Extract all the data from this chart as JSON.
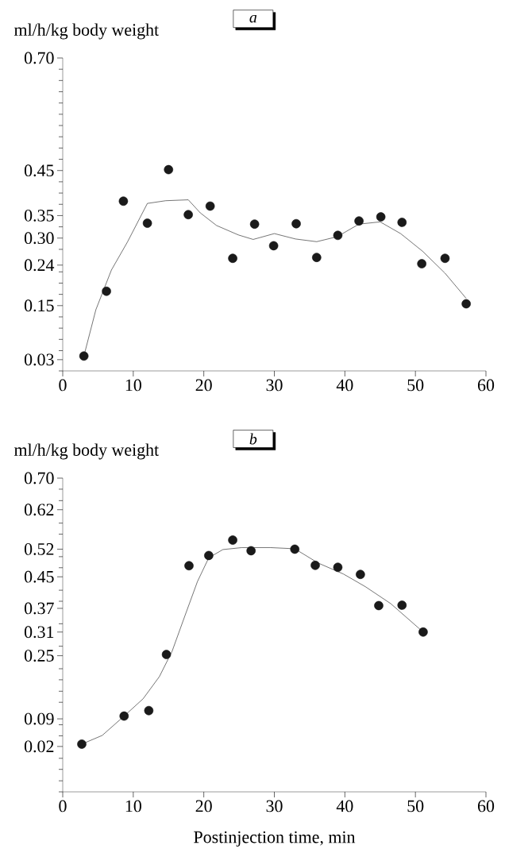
{
  "chart_data": [
    {
      "type": "scatter",
      "title": "a",
      "ylabel": "ml/h/kg body weight",
      "xlim": [
        0,
        60
      ],
      "xticks": [
        0,
        10,
        20,
        30,
        40,
        50,
        60
      ],
      "ylim": [
        0.005,
        0.7
      ],
      "yticks": [
        {
          "value": 0.7,
          "label": "0.70"
        },
        0.45,
        0.35,
        {
          "value": 0.3,
          "label": "0.30"
        },
        0.24,
        0.15,
        0.03,
        {
          "value": 0.675,
          "label": null
        },
        {
          "value": 0.65,
          "label": null
        },
        {
          "value": 0.625,
          "label": null
        },
        {
          "value": 0.6,
          "label": null
        },
        {
          "value": 0.575,
          "label": null
        },
        {
          "value": 0.55,
          "label": null
        },
        {
          "value": 0.525,
          "label": null
        },
        {
          "value": 0.5,
          "label": null
        },
        {
          "value": 0.475,
          "label": null
        },
        {
          "value": 0.425,
          "label": null
        },
        {
          "value": 0.4,
          "label": null
        },
        {
          "value": 0.375,
          "label": null
        },
        {
          "value": 0.325,
          "label": null
        },
        {
          "value": 0.275,
          "label": null
        },
        {
          "value": 0.225,
          "label": null
        },
        {
          "value": 0.2,
          "label": null
        },
        {
          "value": 0.175,
          "label": null
        },
        {
          "value": 0.125,
          "label": null
        },
        {
          "value": 0.1,
          "label": null
        },
        {
          "value": 0.075,
          "label": null
        },
        {
          "value": 0.05,
          "label": null
        },
        {
          "value": 0.005,
          "label": null
        }
      ],
      "series": [
        {
          "type": "scatter",
          "marker": "circle",
          "color": "#1a1a1a",
          "x": [
            3.0,
            6.2,
            8.6,
            12.0,
            15.0,
            17.8,
            20.9,
            24.1,
            27.2,
            29.9,
            33.1,
            36.0,
            39.0,
            42.0,
            45.1,
            48.1,
            50.9,
            54.2,
            57.2
          ],
          "values": [
            0.038,
            0.182,
            0.382,
            0.333,
            0.452,
            0.352,
            0.371,
            0.255,
            0.331,
            0.283,
            0.332,
            0.257,
            0.306,
            0.338,
            0.347,
            0.335,
            0.243,
            0.255,
            0.154
          ]
        },
        {
          "type": "line",
          "marker": "none",
          "line_style": "solid",
          "color": "#1a1a1a",
          "x": [
            3.0,
            4.7,
            6.9,
            9.2,
            12.0,
            14.6,
            17.8,
            19.5,
            21.8,
            24.9,
            27.0,
            30.0,
            33.0,
            36.0,
            38.9,
            42.0,
            45.0,
            47.9,
            51.0,
            54.2,
            57.2
          ],
          "values": [
            0.038,
            0.141,
            0.229,
            0.292,
            0.377,
            0.383,
            0.385,
            0.356,
            0.328,
            0.307,
            0.297,
            0.31,
            0.298,
            0.292,
            0.303,
            0.331,
            0.336,
            0.31,
            0.271,
            0.222,
            0.166
          ]
        }
      ]
    },
    {
      "type": "scatter",
      "title": "b",
      "ylabel": "ml/h/kg body weight",
      "xlabel": "Postinjection time, min",
      "xlim": [
        0,
        60
      ],
      "xticks": [
        0,
        10,
        20,
        30,
        40,
        50,
        60
      ],
      "ylim": [
        -0.095,
        0.7
      ],
      "yticks": [
        {
          "value": 0.7,
          "label": "0.70"
        },
        0.62,
        0.52,
        0.45,
        0.37,
        0.31,
        0.25,
        0.09,
        0.02,
        {
          "value": 0.672,
          "label": null
        },
        {
          "value": 0.643,
          "label": null
        },
        {
          "value": 0.586,
          "label": null
        },
        {
          "value": 0.558,
          "label": null
        },
        {
          "value": 0.501,
          "label": null
        },
        {
          "value": 0.473,
          "label": null
        },
        {
          "value": 0.416,
          "label": null
        },
        {
          "value": 0.388,
          "label": null
        },
        {
          "value": 0.331,
          "label": null
        },
        {
          "value": 0.274,
          "label": null
        },
        {
          "value": 0.217,
          "label": null
        },
        {
          "value": 0.189,
          "label": null
        },
        {
          "value": 0.16,
          "label": null
        },
        {
          "value": 0.132,
          "label": null
        },
        {
          "value": 0.075,
          "label": null
        },
        {
          "value": 0.047,
          "label": null
        },
        {
          "value": -0.01,
          "label": null
        },
        {
          "value": -0.038,
          "label": null
        },
        {
          "value": -0.067,
          "label": null
        },
        {
          "value": -0.095,
          "label": null
        }
      ],
      "series": [
        {
          "type": "scatter",
          "marker": "circle",
          "color": "#1a1a1a",
          "x": [
            2.7,
            8.7,
            12.2,
            14.7,
            17.9,
            20.7,
            24.1,
            26.7,
            32.9,
            35.8,
            39.0,
            42.2,
            44.8,
            48.1,
            51.1
          ],
          "values": [
            0.026,
            0.097,
            0.111,
            0.253,
            0.478,
            0.504,
            0.543,
            0.516,
            0.52,
            0.479,
            0.474,
            0.456,
            0.377,
            0.378,
            0.31
          ]
        },
        {
          "type": "line",
          "marker": "none",
          "line_style": "solid",
          "color": "#1a1a1a",
          "x": [
            2.7,
            5.6,
            8.7,
            11.4,
            13.7,
            15.5,
            17.3,
            19.1,
            20.7,
            22.7,
            25.4,
            29.4,
            32.9,
            36.2,
            39.8,
            42.9,
            46.5,
            51.1
          ],
          "values": [
            0.026,
            0.048,
            0.097,
            0.141,
            0.197,
            0.261,
            0.35,
            0.438,
            0.498,
            0.519,
            0.524,
            0.524,
            0.521,
            0.485,
            0.457,
            0.425,
            0.382,
            0.31
          ]
        }
      ]
    }
  ]
}
